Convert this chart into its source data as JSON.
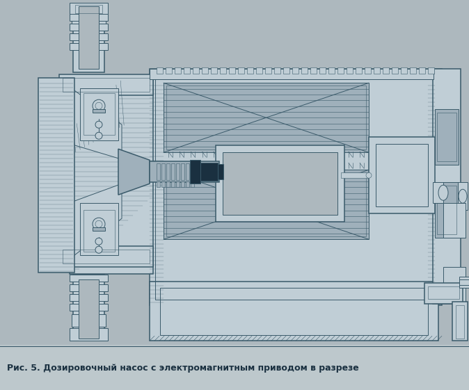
{
  "bg": "#adb8be",
  "cap_bg": "#bdc8cc",
  "lc": "#3a5a6a",
  "lc_dark": "#1a3040",
  "fc_light": "#c0ced6",
  "fc_mid": "#9fb0bb",
  "fc_dark": "#1a3040",
  "cap_text": "Рис. 5. Дозировочный насос с электромагнитным приводом в разрезе",
  "cap_fs": 9.0,
  "fig_w": 6.74,
  "fig_h": 5.61,
  "dpi": 100
}
